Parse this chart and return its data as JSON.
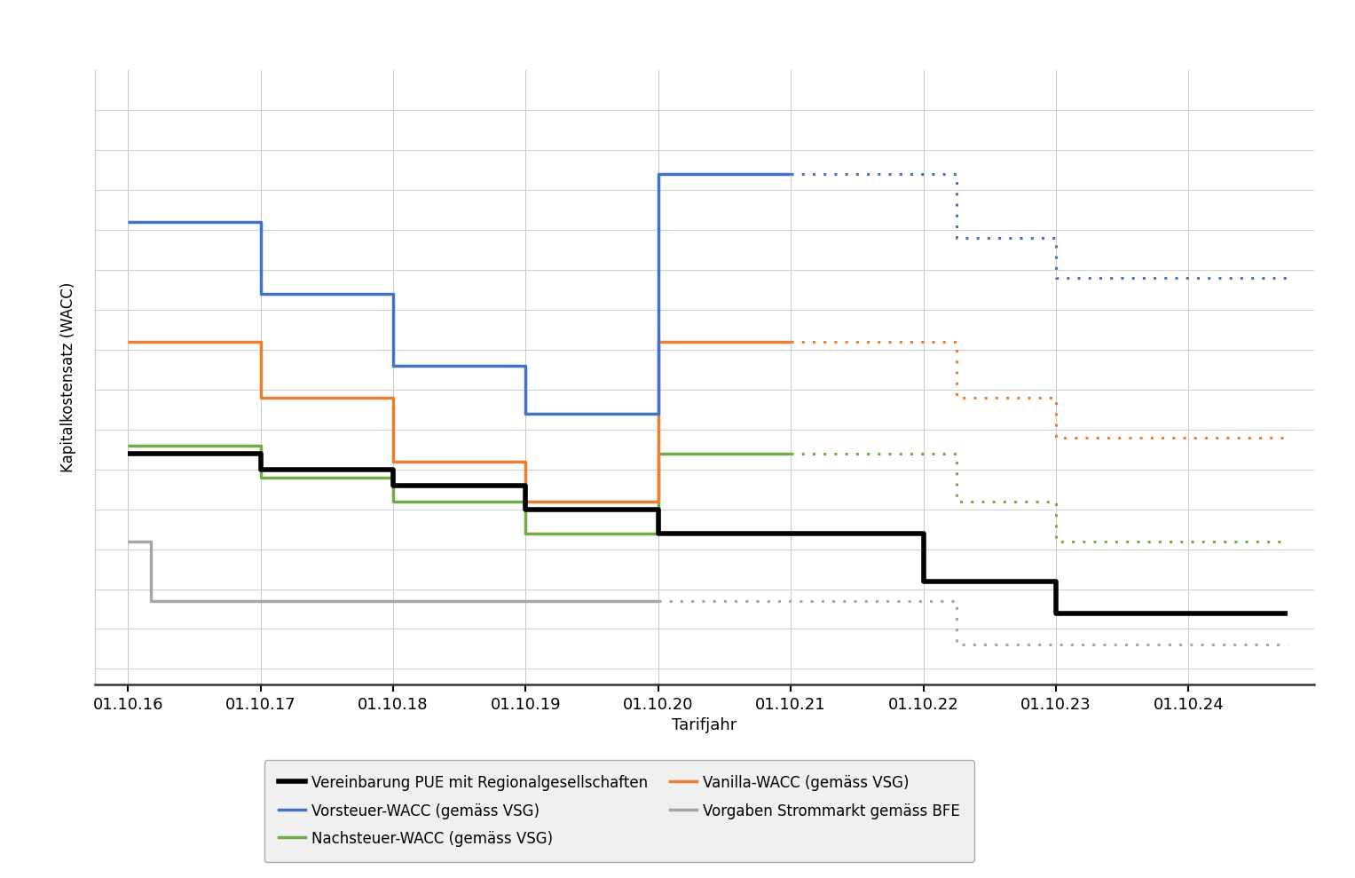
{
  "title": "",
  "ylabel": "Kapitalkostensatz (WACC)",
  "xlabel": "Tarifjahr",
  "background_color": "#ffffff",
  "grid_color": "#c8c8c8",
  "colors": {
    "black": "#000000",
    "blue": "#4472c4",
    "green": "#70ad47",
    "orange": "#ed7d31",
    "gray": "#a6a6a6"
  },
  "legend_labels": {
    "black": "Vereinbarung PUE mit Regionalgesellschaften",
    "blue": "Vorsteuer-WACC (gemäss VSG)",
    "green": "Nachsteuer-WACC (gemäss VSG)",
    "orange": "Vanilla-WACC (gemäss VSG)",
    "gray": "Vorgaben Strommarkt gemäss BFE"
  },
  "black_solid": {
    "x": [
      2016.75,
      2017.75,
      2017.75,
      2018.75,
      2018.75,
      2019.75,
      2019.75,
      2020.75,
      2020.75,
      2022.75,
      2022.75,
      2023.75,
      2023.75,
      2025.5
    ],
    "y": [
      5.7,
      5.7,
      5.5,
      5.5,
      5.3,
      5.3,
      5.0,
      5.0,
      4.7,
      4.7,
      4.1,
      4.1,
      3.7,
      3.7
    ]
  },
  "blue_solid": {
    "x": [
      2016.75,
      2017.75,
      2017.75,
      2018.75,
      2018.75,
      2019.75,
      2019.75,
      2020.75,
      2020.75,
      2021.75
    ],
    "y": [
      8.6,
      8.6,
      7.7,
      7.7,
      6.8,
      6.8,
      6.2,
      6.2,
      9.2,
      9.2
    ]
  },
  "blue_dotted": {
    "x": [
      2021.75,
      2023.0,
      2023.0,
      2023.75,
      2023.75,
      2025.5
    ],
    "y": [
      9.2,
      9.2,
      8.4,
      8.4,
      7.9,
      7.9
    ]
  },
  "green_solid": {
    "x": [
      2016.75,
      2017.75,
      2017.75,
      2018.75,
      2018.75,
      2019.75,
      2019.75,
      2020.75,
      2020.75,
      2021.75
    ],
    "y": [
      5.8,
      5.8,
      5.4,
      5.4,
      5.1,
      5.1,
      4.7,
      4.7,
      5.7,
      5.7
    ]
  },
  "green_dotted": {
    "x": [
      2021.75,
      2023.0,
      2023.0,
      2023.75,
      2023.75,
      2025.5
    ],
    "y": [
      5.7,
      5.7,
      5.1,
      5.1,
      4.6,
      4.6
    ]
  },
  "orange_solid": {
    "x": [
      2016.75,
      2017.75,
      2017.75,
      2018.75,
      2018.75,
      2019.75,
      2019.75,
      2020.75,
      2020.75,
      2021.75
    ],
    "y": [
      7.1,
      7.1,
      6.4,
      6.4,
      5.6,
      5.6,
      5.1,
      5.1,
      7.1,
      7.1
    ]
  },
  "orange_dotted": {
    "x": [
      2021.75,
      2023.0,
      2023.0,
      2023.75,
      2023.75,
      2025.5
    ],
    "y": [
      7.1,
      7.1,
      6.4,
      6.4,
      5.9,
      5.9
    ]
  },
  "gray_solid": {
    "x": [
      2016.75,
      2016.92,
      2016.92,
      2020.75
    ],
    "y": [
      4.6,
      4.6,
      3.85,
      3.85
    ]
  },
  "gray_dotted": {
    "x": [
      2020.75,
      2023.0,
      2023.0,
      2025.5
    ],
    "y": [
      3.85,
      3.85,
      3.3,
      3.3
    ]
  },
  "ylim": [
    2.8,
    10.5
  ],
  "yticks": [],
  "xticks": [
    2016.75,
    2017.75,
    2018.75,
    2019.75,
    2020.75,
    2021.75,
    2022.75,
    2023.75,
    2024.75
  ],
  "xtick_labels": [
    "01.10.16",
    "01.10.17",
    "01.10.18",
    "01.10.19",
    "01.10.20",
    "01.10.21",
    "01.10.22",
    "01.10.23",
    "01.10.24"
  ],
  "xlim": [
    2016.5,
    2025.7
  ]
}
